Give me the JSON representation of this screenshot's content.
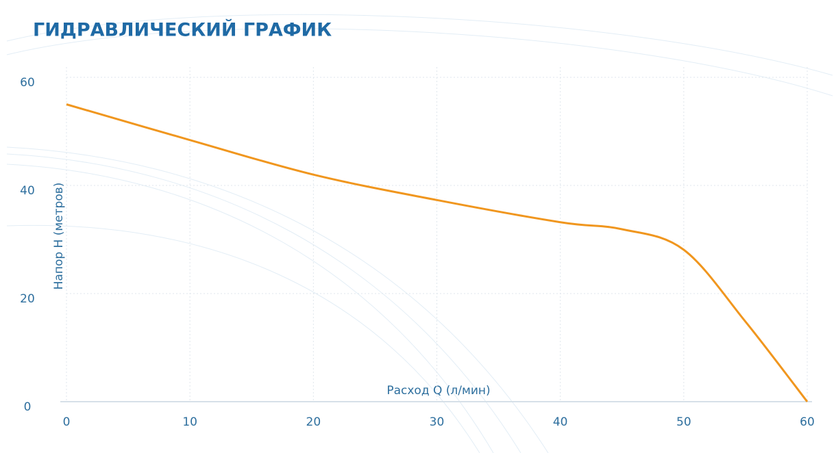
{
  "chart_data": {
    "type": "line",
    "title": "ГИДРАВЛИЧЕСКИЙ ГРАФИК",
    "x_label": "Расход Q (л/мин)",
    "y_label": "Напор Н (метров)",
    "x": [
      0,
      10,
      20,
      30,
      40,
      45,
      50,
      55,
      60
    ],
    "series": [
      {
        "color": "#f0961e",
        "values": [
          55,
          48.4,
          42,
          37.3,
          33.2,
          31.9,
          28.1,
          14.8,
          0
        ]
      }
    ],
    "xlim": [
      0,
      60
    ],
    "xticks": [
      0,
      10,
      20,
      30,
      40,
      50,
      60
    ],
    "ylim": [
      0,
      60
    ],
    "yticks": [
      0,
      20,
      40,
      60
    ],
    "grid": true
  }
}
